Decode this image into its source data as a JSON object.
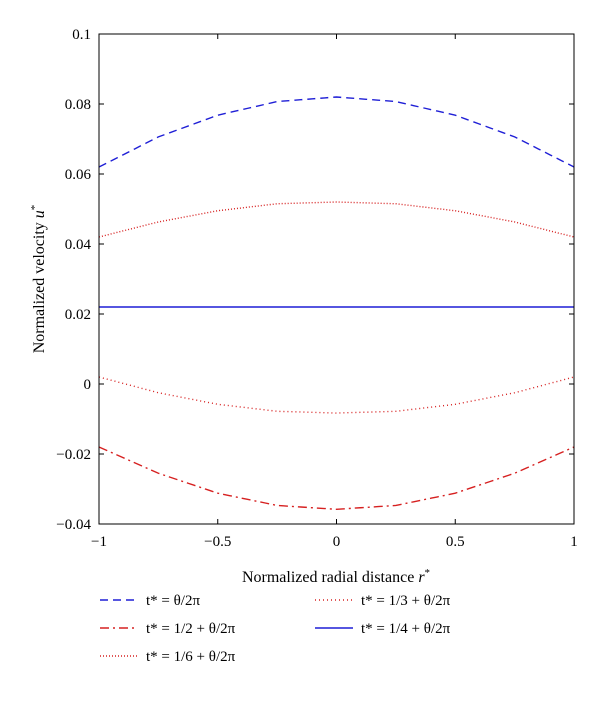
{
  "chart_data": {
    "type": "line",
    "title": "",
    "xlabel": "Normalized radial distance r*",
    "ylabel": "Normalized velocity u*",
    "xlim": [
      -1,
      1
    ],
    "ylim": [
      -0.04,
      0.1
    ],
    "xticks": [
      "−1",
      "−0.5",
      "0",
      "0.5",
      "1"
    ],
    "xtick_values": [
      -1,
      -0.5,
      0,
      0.5,
      1
    ],
    "yticks": [
      "−0.04",
      "−0.02",
      "0",
      "0.02",
      "0.04",
      "0.06",
      "0.08",
      "0.1"
    ],
    "ytick_values": [
      -0.04,
      -0.02,
      0,
      0.02,
      0.04,
      0.06,
      0.08,
      0.1
    ],
    "grid": false,
    "legend_position": "bottom",
    "x": [
      -1,
      -0.75,
      -0.5,
      -0.25,
      0,
      0.25,
      0.5,
      0.75,
      1
    ],
    "series": [
      {
        "name": "t* = θ/2π",
        "color": "#1f1fd6",
        "style": "dashed",
        "values": [
          0.062,
          0.0706,
          0.0768,
          0.0807,
          0.082,
          0.0807,
          0.0768,
          0.0706,
          0.062
        ]
      },
      {
        "name": "t* = 1/2 + θ/2π",
        "color": "#d62020",
        "style": "dash-dot",
        "values": [
          -0.018,
          -0.0255,
          -0.0312,
          -0.0347,
          -0.0358,
          -0.0347,
          -0.0312,
          -0.0255,
          -0.018
        ]
      },
      {
        "name": "t* = 1/6 + θ/2π",
        "color": "#d62020",
        "style": "dash-dot-dot",
        "values": [
          0.042,
          0.0463,
          0.0495,
          0.0515,
          0.052,
          0.0515,
          0.0495,
          0.0463,
          0.042
        ]
      },
      {
        "name": "t* = 1/3 + θ/2π",
        "color": "#d62020",
        "style": "dotted",
        "values": [
          0.002,
          -0.0025,
          -0.0058,
          -0.0078,
          -0.0083,
          -0.0078,
          -0.0058,
          -0.0025,
          0.002
        ]
      },
      {
        "name": "t* = 1/4 + θ/2π",
        "color": "#1f1fd6",
        "style": "solid",
        "values": [
          0.022,
          0.022,
          0.022,
          0.022,
          0.022,
          0.022,
          0.022,
          0.022,
          0.022
        ]
      }
    ]
  }
}
